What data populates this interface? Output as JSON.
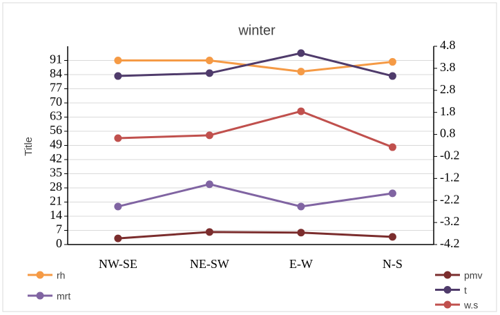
{
  "chart_data": {
    "type": "line",
    "title": "winter",
    "y_label": "Title",
    "categories": [
      "NW-SE",
      "NE-SW",
      "E-W",
      "N-S"
    ],
    "series": [
      {
        "name": "rh",
        "color": "#f59a45",
        "values": [
          91,
          91,
          85.5,
          90.3
        ]
      },
      {
        "name": "mrt",
        "color": "#8064a2",
        "values": [
          18.8,
          29.8,
          18.8,
          25.3
        ]
      },
      {
        "name": "pmv",
        "color": "#7b2d2d",
        "axis": "y2",
        "values": [
          -3.92,
          -3.63,
          -3.66,
          -3.85
        ]
      },
      {
        "name": "t",
        "color": "#4f3b6b",
        "axis": "y2",
        "values": [
          3.45,
          3.58,
          4.49,
          3.45
        ]
      },
      {
        "name": "w.s",
        "color": "#c0504d",
        "axis": "y2",
        "values": [
          0.63,
          0.76,
          1.85,
          0.22
        ]
      }
    ],
    "ylim": [
      0,
      98
    ],
    "yticks": [
      0,
      7,
      14,
      21,
      28,
      35,
      42,
      49,
      56,
      63,
      70,
      77,
      84,
      91
    ],
    "y2lim": [
      -4.2,
      4.8
    ],
    "y2ticks": [
      -4.2,
      -3.2,
      -2.2,
      -1.2,
      -0.2,
      0.8,
      1.8,
      2.8,
      3.8,
      4.8
    ],
    "grid": true
  }
}
